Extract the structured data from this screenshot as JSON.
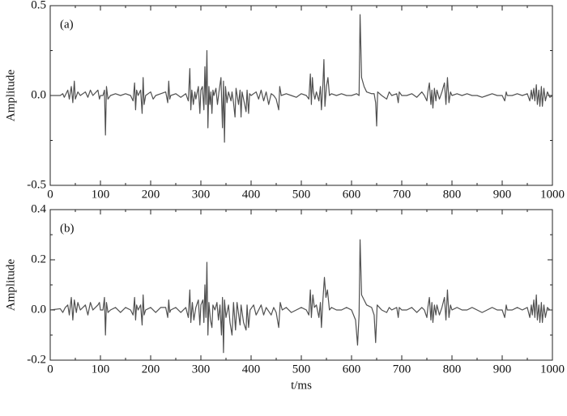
{
  "chart_data": [
    {
      "type": "line",
      "annotation": "(a)",
      "ylabel": "Amplitude",
      "color": "#505050",
      "xlim": [
        0,
        1000
      ],
      "xticks": [
        0,
        100,
        200,
        300,
        400,
        500,
        600,
        700,
        800,
        900,
        1000
      ],
      "ylim": [
        -0.5,
        0.5
      ],
      "yticks": [
        -0.5,
        {
          "value": 0,
          "label": "0.0"
        },
        0.5
      ],
      "x": [
        0,
        20,
        25,
        28,
        35,
        38,
        42,
        45,
        48,
        50,
        55,
        60,
        70,
        75,
        80,
        85,
        95,
        98,
        100,
        105,
        108,
        110,
        112,
        115,
        120,
        130,
        140,
        150,
        160,
        165,
        168,
        170,
        172,
        175,
        180,
        183,
        185,
        187,
        190,
        200,
        205,
        210,
        220,
        230,
        234,
        236,
        238,
        240,
        250,
        260,
        270,
        275,
        278,
        280,
        282,
        285,
        288,
        290,
        295,
        298,
        300,
        303,
        306,
        308,
        310,
        312,
        314,
        316,
        318,
        320,
        322,
        324,
        326,
        330,
        333,
        336,
        340,
        343,
        345,
        347,
        349,
        352,
        355,
        360,
        362,
        365,
        368,
        370,
        375,
        378,
        380,
        382,
        385,
        390,
        392,
        395,
        397,
        400,
        410,
        415,
        420,
        425,
        430,
        435,
        440,
        445,
        450,
        455,
        457,
        460,
        470,
        480,
        490,
        500,
        510,
        515,
        518,
        520,
        522,
        524,
        527,
        530,
        535,
        538,
        540,
        543,
        545,
        547,
        550,
        553,
        556,
        560,
        570,
        580,
        590,
        600,
        610,
        615,
        617,
        620,
        625,
        630,
        640,
        645,
        648,
        650,
        652,
        660,
        670,
        675,
        680,
        690,
        693,
        695,
        700,
        710,
        720,
        730,
        740,
        745,
        750,
        752,
        755,
        758,
        760,
        762,
        765,
        768,
        770,
        775,
        780,
        785,
        788,
        791,
        794,
        797,
        800,
        810,
        820,
        830,
        840,
        850,
        860,
        870,
        880,
        890,
        900,
        905,
        908,
        910,
        920,
        930,
        940,
        950,
        955,
        958,
        960,
        963,
        965,
        968,
        970,
        973,
        975,
        978,
        980,
        983,
        986,
        990,
        995,
        1000
      ],
      "values": [
        0,
        0,
        0.01,
        -0.01,
        0.03,
        -0.02,
        0.05,
        -0.04,
        0.08,
        -0.02,
        0.02,
        0,
        0.02,
        -0.01,
        0.03,
        0,
        0.03,
        -0.02,
        0,
        0,
        0.03,
        -0.22,
        0.05,
        -0.02,
        0,
        0.01,
        0,
        0.01,
        0,
        -0.03,
        0.07,
        -0.08,
        0.03,
        0,
        0.03,
        -0.1,
        0.1,
        -0.05,
        0,
        0.02,
        -0.02,
        0,
        0.01,
        0.02,
        -0.04,
        0.08,
        -0.02,
        0,
        0.01,
        -0.01,
        0.01,
        -0.03,
        0.15,
        -0.08,
        0.03,
        -0.05,
        0.02,
        -0.02,
        0.05,
        -0.1,
        0.03,
        0.05,
        -0.08,
        0.16,
        -0.05,
        0.25,
        -0.18,
        0.05,
        -0.05,
        0.02,
        -0.1,
        0.03,
        0,
        0.04,
        -0.05,
        0.02,
        0.1,
        -0.18,
        0.08,
        -0.26,
        0.05,
        -0.04,
        0.02,
        -0.03,
        0.02,
        -0.04,
        -0.12,
        0.04,
        -0.05,
        0.03,
        -0.12,
        0.02,
        -0.02,
        -0.09,
        0.03,
        -0.1,
        0.01,
        0,
        0.02,
        -0.02,
        0.03,
        -0.03,
        0.02,
        -0.05,
        0.01,
        0,
        -0.02,
        -0.08,
        0.05,
        0,
        0.01,
        0,
        -0.01,
        0.01,
        0,
        -0.02,
        0.12,
        -0.05,
        0.1,
        0.02,
        -0.02,
        0.02,
        -0.03,
        0.05,
        -0.08,
        0.06,
        0.2,
        -0.06,
        0.05,
        0.1,
        0,
        0.01,
        0,
        0.01,
        0,
        0,
        0.01,
        0,
        0.45,
        0.1,
        0.05,
        0.02,
        0.01,
        0.01,
        -0.04,
        -0.17,
        0.02,
        0,
        -0.02,
        0.02,
        0,
        0.01,
        -0.04,
        0.02,
        0,
        0,
        0.01,
        -0.01,
        0.02,
        0,
        -0.03,
        0.02,
        0.07,
        -0.05,
        0.03,
        -0.07,
        0.04,
        -0.03,
        0.03,
        -0.02,
        0.02,
        0.07,
        -0.05,
        0.1,
        -0.04,
        0.02,
        0,
        0.01,
        0,
        0.01,
        0,
        0,
        -0.01,
        0,
        0.01,
        0,
        0,
        -0.03,
        0.02,
        0,
        0,
        0.01,
        0,
        0.01,
        -0.03,
        0.03,
        -0.02,
        0.04,
        -0.03,
        0.06,
        -0.05,
        0.03,
        -0.06,
        0.05,
        -0.06,
        0.04,
        -0.03,
        0.02,
        -0.01,
        0
      ]
    },
    {
      "type": "line",
      "annotation": "(b)",
      "ylabel": "Amplitude",
      "xlabel": "t/ms",
      "color": "#505050",
      "xlim": [
        0,
        1000
      ],
      "xticks": [
        0,
        100,
        200,
        300,
        400,
        500,
        600,
        700,
        800,
        900,
        1000
      ],
      "ylim": [
        -0.2,
        0.4
      ],
      "yticks": [
        -0.2,
        {
          "value": 0,
          "label": "0.0"
        },
        0.2,
        0.4
      ],
      "x": [
        0,
        20,
        25,
        30,
        35,
        38,
        42,
        45,
        48,
        52,
        55,
        60,
        70,
        75,
        80,
        85,
        95,
        98,
        100,
        105,
        108,
        110,
        112,
        115,
        120,
        130,
        140,
        150,
        160,
        165,
        168,
        170,
        172,
        175,
        180,
        183,
        185,
        187,
        190,
        200,
        210,
        220,
        230,
        234,
        236,
        238,
        240,
        250,
        260,
        270,
        275,
        278,
        280,
        283,
        286,
        290,
        295,
        298,
        300,
        304,
        306,
        308,
        310,
        312,
        314,
        316,
        319,
        322,
        324,
        328,
        332,
        335,
        338,
        341,
        343,
        345,
        347,
        350,
        355,
        358,
        362,
        365,
        369,
        372,
        378,
        380,
        385,
        390,
        392,
        395,
        398,
        405,
        410,
        420,
        425,
        430,
        440,
        445,
        450,
        455,
        458,
        462,
        470,
        480,
        490,
        500,
        510,
        515,
        518,
        520,
        523,
        526,
        530,
        535,
        538,
        540,
        543,
        546,
        549,
        552,
        556,
        560,
        570,
        580,
        590,
        600,
        608,
        612,
        615,
        617,
        620,
        625,
        630,
        640,
        645,
        648,
        651,
        660,
        670,
        675,
        680,
        690,
        693,
        695,
        700,
        710,
        720,
        730,
        740,
        745,
        750,
        752,
        755,
        758,
        760,
        762,
        765,
        768,
        770,
        775,
        780,
        785,
        788,
        791,
        794,
        797,
        800,
        810,
        820,
        830,
        840,
        850,
        860,
        870,
        880,
        890,
        900,
        905,
        908,
        910,
        920,
        930,
        940,
        950,
        955,
        958,
        960,
        963,
        965,
        968,
        970,
        973,
        975,
        978,
        980,
        983,
        986,
        990,
        995,
        1000
      ],
      "values": [
        0,
        0.005,
        -0.01,
        0.01,
        0.02,
        -0.02,
        0.05,
        -0.04,
        0.04,
        -0.01,
        0.03,
        0,
        0.02,
        -0.02,
        0.03,
        0,
        0.02,
        0.03,
        0,
        0,
        0.05,
        -0.1,
        0.03,
        -0.01,
        0,
        0.01,
        -0.01,
        0.01,
        0,
        -0.02,
        0.05,
        -0.04,
        0.02,
        0,
        0.02,
        -0.06,
        0.06,
        -0.02,
        0,
        0.01,
        -0.01,
        0.01,
        0.01,
        -0.03,
        0.04,
        -0.01,
        0,
        0.01,
        -0.01,
        0.01,
        -0.03,
        0.08,
        -0.05,
        0.03,
        -0.04,
        0.01,
        0.04,
        -0.06,
        0.02,
        0.04,
        -0.05,
        0.1,
        -0.03,
        0.19,
        -0.1,
        0.03,
        -0.04,
        -0.07,
        0.02,
        0,
        0.03,
        -0.04,
        0.02,
        -0.1,
        0.05,
        -0.17,
        0.04,
        -0.03,
        0.02,
        -0.05,
        -0.1,
        0.03,
        -0.08,
        0.03,
        -0.06,
        0.02,
        -0.05,
        -0.08,
        0.02,
        -0.07,
        0,
        0.02,
        -0.02,
        0.02,
        -0.02,
        0.01,
        -0.02,
        0.01,
        -0.01,
        -0.07,
        0.03,
        0,
        0.01,
        -0.01,
        0,
        0.01,
        0,
        -0.02,
        0.08,
        -0.03,
        0.06,
        0.01,
        0.02,
        -0.03,
        0.03,
        -0.07,
        0.04,
        0.13,
        0.05,
        0.08,
        0,
        0.01,
        0,
        0,
        0.01,
        0,
        -0.04,
        -0.14,
        -0.02,
        0.28,
        0.06,
        0.04,
        0.02,
        0.01,
        -0.02,
        -0.13,
        0.02,
        0,
        -0.01,
        0.01,
        0,
        0.01,
        -0.03,
        0.01,
        0,
        0,
        0.01,
        -0.01,
        0.01,
        0,
        -0.03,
        0.01,
        0.05,
        -0.04,
        0.03,
        -0.05,
        0.02,
        -0.02,
        0.02,
        -0.02,
        0.01,
        0.05,
        -0.04,
        0.08,
        -0.03,
        0.02,
        0,
        0.01,
        0,
        0,
        0.01,
        0,
        -0.01,
        0,
        0.01,
        0,
        0,
        -0.03,
        0.02,
        0,
        0,
        0.01,
        0,
        0.01,
        -0.03,
        0.02,
        -0.02,
        0.04,
        -0.03,
        0.06,
        -0.04,
        0.02,
        -0.05,
        0.03,
        -0.05,
        0.02,
        -0.03,
        0.01,
        0,
        0
      ]
    }
  ]
}
